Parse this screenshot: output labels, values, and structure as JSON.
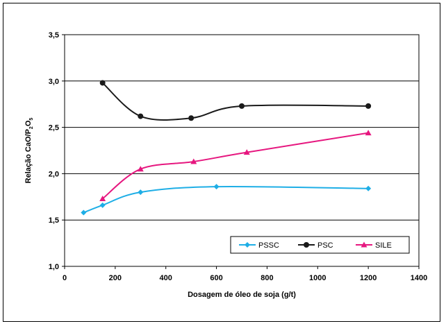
{
  "chart_data": {
    "type": "line",
    "title": "",
    "xlabel": "Dosagem de óleo de soja (g/t)",
    "ylabel_main": "Relação CaO/P",
    "ylabel_sub1": "2",
    "ylabel_mid": "O",
    "ylabel_sub2": "5",
    "xlim": [
      0,
      1400
    ],
    "ylim": [
      1.0,
      3.5
    ],
    "x_ticks": [
      0,
      200,
      400,
      600,
      800,
      1000,
      1200,
      1400
    ],
    "x_tick_labels": [
      "0",
      "200",
      "400",
      "600",
      "800",
      "1000",
      "1200",
      "1400"
    ],
    "y_ticks": [
      1.0,
      1.5,
      2.0,
      2.5,
      3.0,
      3.5
    ],
    "y_tick_labels": [
      "1,0",
      "1,5",
      "2,0",
      "2,5",
      "3,0",
      "3,5"
    ],
    "grid": "horizontal",
    "legend_position": "bottom-right",
    "series": [
      {
        "name": "PSSC",
        "color": "#1EAEE6",
        "marker": "diamond",
        "points": [
          [
            75,
            1.58
          ],
          [
            150,
            1.66
          ],
          [
            300,
            1.8
          ],
          [
            600,
            1.86
          ],
          [
            1200,
            1.84
          ]
        ]
      },
      {
        "name": "PSC",
        "color": "#1a1a1a",
        "marker": "circle",
        "points": [
          [
            150,
            2.98
          ],
          [
            300,
            2.62
          ],
          [
            500,
            2.6
          ],
          [
            700,
            2.73
          ],
          [
            1200,
            2.73
          ]
        ]
      },
      {
        "name": "SILE",
        "color": "#E6177F",
        "marker": "triangle",
        "points": [
          [
            150,
            1.73
          ],
          [
            300,
            2.05
          ],
          [
            510,
            2.13
          ],
          [
            720,
            2.23
          ],
          [
            1200,
            2.44
          ]
        ]
      }
    ]
  }
}
